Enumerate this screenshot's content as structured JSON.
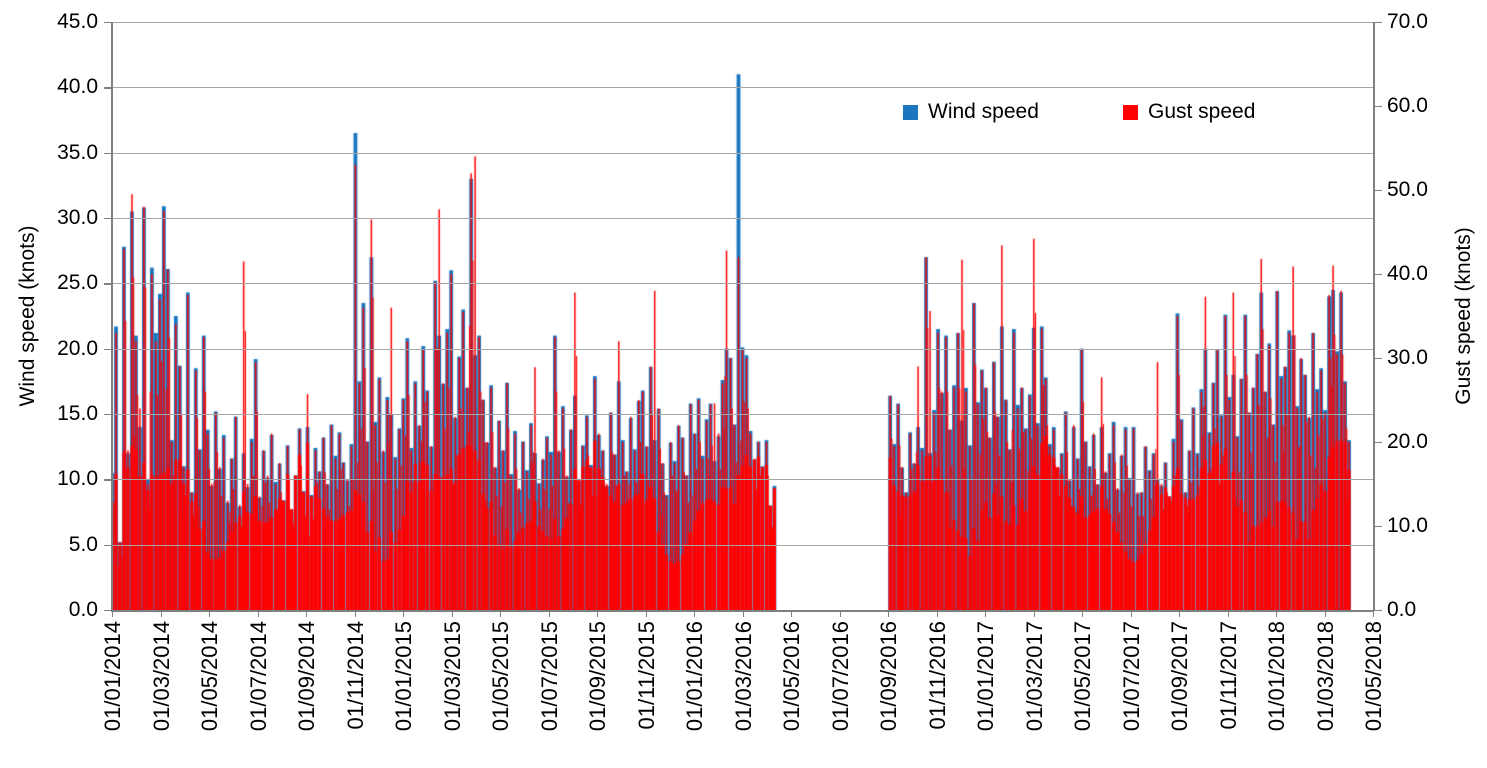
{
  "chart_data": {
    "type": "bar",
    "title": "",
    "legend_position": "inside-top-right",
    "grid": "horizontal",
    "colors": {
      "wind": "#1976BF",
      "gust": "#FF0000",
      "gridline": "#A6A6A6",
      "axis_line": "#808080",
      "text": "#000000",
      "background": "#FFFFFF"
    },
    "series": [
      {
        "name": "Wind speed",
        "axis": "left",
        "color": "#1976BF",
        "unit": "knots"
      },
      {
        "name": "Gust speed",
        "axis": "right",
        "color": "#FF0000",
        "unit": "knots"
      }
    ],
    "left_axis": {
      "label": "Wind speed (knots)",
      "min": 0,
      "max": 45,
      "step": 5,
      "tick_labels": [
        "45.0",
        "40.0",
        "35.0",
        "30.0",
        "25.0",
        "20.0",
        "15.0",
        "10.0",
        "5.0",
        "0.0"
      ]
    },
    "right_axis": {
      "label": "Gust speed (knots)",
      "min": 0,
      "max": 70,
      "step": 10,
      "tick_labels": [
        "70.0",
        "60.0",
        "50.0",
        "40.0",
        "30.0",
        "20.0",
        "10.0",
        "0.0"
      ]
    },
    "x_axis": {
      "tick_labels": [
        "01/01/2014",
        "01/03/2014",
        "01/05/2014",
        "01/07/2014",
        "01/09/2014",
        "01/11/2014",
        "01/01/2015",
        "01/03/2015",
        "01/05/2015",
        "01/07/2015",
        "01/09/2015",
        "01/11/2015",
        "01/01/2016",
        "01/03/2016",
        "01/05/2016",
        "01/07/2016",
        "01/09/2016",
        "01/11/2016",
        "01/01/2017",
        "01/03/2017",
        "01/05/2017",
        "01/07/2017",
        "01/09/2017",
        "01/11/2017",
        "01/01/2018",
        "01/03/2018",
        "01/05/2018"
      ]
    },
    "sample_interval_days": 5,
    "samples_start": "01/01/2014",
    "data_gap": {
      "approx_start": "04/2016",
      "approx_end": "09/2016"
    },
    "annotations": {
      "max_wind_knots": 41.0,
      "max_wind_at": "01/03/2016",
      "secondary_wind_peak_knots": 36.5,
      "secondary_wind_peak_at": "11/2014",
      "max_gust_knots": 54.0,
      "max_gust_at": "03/2015"
    },
    "samples_wind_gust_knots": [
      [
        10.5,
        16
      ],
      [
        21.7,
        33
      ],
      [
        5.2,
        8
      ],
      [
        27.8,
        43
      ],
      [
        12,
        19
      ],
      [
        30.5,
        49.5
      ],
      [
        21,
        32
      ],
      [
        14,
        24
      ],
      [
        30.8,
        48
      ],
      [
        10,
        15
      ],
      [
        26.2,
        40
      ],
      [
        21.2,
        32
      ],
      [
        24.2,
        37
      ],
      [
        30.9,
        47.5
      ],
      [
        26.1,
        40.5
      ],
      [
        13,
        20
      ],
      [
        22.5,
        34
      ],
      [
        18.7,
        29
      ],
      [
        11,
        17
      ],
      [
        24.3,
        37.5
      ],
      [
        9,
        14
      ],
      [
        18.5,
        28.5
      ],
      [
        12.3,
        19
      ],
      [
        21,
        32.5
      ],
      [
        13.8,
        21
      ],
      [
        9.5,
        15
      ],
      [
        15.2,
        23.5
      ],
      [
        10.8,
        17
      ],
      [
        13.4,
        20.5
      ],
      [
        8.2,
        13
      ],
      [
        11.6,
        18
      ],
      [
        14.8,
        23
      ],
      [
        7.9,
        12.5
      ],
      [
        12,
        41.5
      ],
      [
        9.4,
        15
      ],
      [
        13.1,
        20
      ],
      [
        19.2,
        29.5
      ],
      [
        8.6,
        13.5
      ],
      [
        12.2,
        19
      ],
      [
        10.1,
        16
      ],
      [
        13.4,
        21
      ],
      [
        9.8,
        15
      ],
      [
        11.2,
        17.5
      ],
      [
        8.4,
        13
      ],
      [
        12.6,
        19.5
      ],
      [
        7.6,
        12
      ],
      [
        10.3,
        16
      ],
      [
        13.9,
        21.5
      ],
      [
        9.1,
        14
      ],
      [
        14,
        25.7
      ],
      [
        8.8,
        13.5
      ],
      [
        12.4,
        19
      ],
      [
        10.6,
        16.5
      ],
      [
        13.2,
        20.5
      ],
      [
        9.6,
        15
      ],
      [
        14.2,
        22
      ],
      [
        11.8,
        18
      ],
      [
        13.6,
        21
      ],
      [
        11.3,
        17.5
      ],
      [
        9.9,
        15.5
      ],
      [
        12.7,
        19.5
      ],
      [
        36.5,
        53
      ],
      [
        17.5,
        27
      ],
      [
        23.5,
        36
      ],
      [
        12.9,
        20
      ],
      [
        27,
        46.5
      ],
      [
        14.4,
        22
      ],
      [
        17.8,
        27.5
      ],
      [
        12.1,
        19
      ],
      [
        16.3,
        25
      ],
      [
        15,
        36
      ],
      [
        11.7,
        18
      ],
      [
        13.9,
        21.5
      ],
      [
        16.2,
        25
      ],
      [
        20.8,
        32
      ],
      [
        12.4,
        19
      ],
      [
        17.5,
        27
      ],
      [
        14.1,
        22
      ],
      [
        20.2,
        31
      ],
      [
        16.8,
        26
      ],
      [
        12.5,
        19.5
      ],
      [
        25.2,
        39
      ],
      [
        21,
        47.7
      ],
      [
        17.3,
        27
      ],
      [
        21.5,
        33
      ],
      [
        26,
        40
      ],
      [
        14.7,
        23
      ],
      [
        19.4,
        30
      ],
      [
        23,
        35.5
      ],
      [
        17,
        26.5
      ],
      [
        33,
        52
      ],
      [
        19.5,
        54
      ],
      [
        21,
        32.5
      ],
      [
        16.1,
        25
      ],
      [
        12.8,
        20
      ],
      [
        17.2,
        26.5
      ],
      [
        10.9,
        17
      ],
      [
        14.5,
        22.5
      ],
      [
        12.2,
        19
      ],
      [
        17.4,
        27
      ],
      [
        10.4,
        16
      ],
      [
        13.7,
        21
      ],
      [
        9.2,
        14.5
      ],
      [
        12.9,
        20
      ],
      [
        10.7,
        16.5
      ],
      [
        14.3,
        22
      ],
      [
        12,
        28.9
      ],
      [
        9.7,
        15
      ],
      [
        11.5,
        18
      ],
      [
        13.3,
        20.5
      ],
      [
        12.1,
        18.5
      ],
      [
        21,
        32.5
      ],
      [
        12.1,
        19
      ],
      [
        15.6,
        24
      ],
      [
        10.2,
        16
      ],
      [
        13.8,
        21.5
      ],
      [
        16.4,
        37.8
      ],
      [
        9.9,
        15.5
      ],
      [
        12.6,
        19.5
      ],
      [
        14.9,
        23
      ],
      [
        11.1,
        17
      ],
      [
        17.9,
        27.5
      ],
      [
        13.4,
        21
      ],
      [
        12.2,
        19
      ],
      [
        9.5,
        15
      ],
      [
        15.1,
        23.5
      ],
      [
        11.9,
        18.5
      ],
      [
        17.5,
        32
      ],
      [
        13,
        20
      ],
      [
        10.6,
        16.5
      ],
      [
        14.7,
        23
      ],
      [
        12.3,
        19
      ],
      [
        16,
        25
      ],
      [
        16.8,
        26
      ],
      [
        12.5,
        19.5
      ],
      [
        18.6,
        29
      ],
      [
        13,
        38
      ],
      [
        15.4,
        24
      ],
      [
        11.2,
        17.5
      ],
      [
        8.8,
        13.5
      ],
      [
        12.8,
        20
      ],
      [
        11.4,
        17.5
      ],
      [
        14.1,
        22
      ],
      [
        13.2,
        20.5
      ],
      [
        10.3,
        16
      ],
      [
        15.8,
        24.5
      ],
      [
        13.5,
        21
      ],
      [
        16.2,
        25
      ],
      [
        11.8,
        18
      ],
      [
        14.6,
        22.5
      ],
      [
        15.8,
        24.5
      ],
      [
        11.4,
        24.6
      ],
      [
        13.3,
        21
      ],
      [
        17.6,
        27
      ],
      [
        20,
        42.8
      ],
      [
        19.3,
        30
      ],
      [
        14.2,
        22
      ],
      [
        41,
        42
      ],
      [
        20.1,
        31
      ],
      [
        19.5,
        30
      ],
      [
        13.7,
        21
      ],
      [
        11.5,
        18
      ],
      [
        12.9,
        20
      ],
      [
        11,
        17
      ],
      [
        13,
        20
      ],
      [
        8,
        12.4
      ],
      [
        9.5,
        14.5
      ],
      null,
      null,
      null,
      null,
      null,
      null,
      null,
      null,
      null,
      null,
      null,
      null,
      null,
      null,
      null,
      null,
      null,
      null,
      null,
      null,
      null,
      null,
      null,
      null,
      null,
      null,
      null,
      null,
      [
        16.4,
        25.5
      ],
      [
        12.7,
        19.5
      ],
      [
        15.8,
        24.5
      ],
      [
        10.9,
        17
      ],
      [
        9,
        14
      ],
      [
        13.6,
        21
      ],
      [
        11.2,
        17.5
      ],
      [
        14,
        29
      ],
      [
        12.4,
        19
      ],
      [
        27,
        42
      ],
      [
        12,
        35.6
      ],
      [
        15.3,
        23.5
      ],
      [
        21.5,
        33
      ],
      [
        16.6,
        26
      ],
      [
        21,
        32.5
      ],
      [
        13.8,
        21.5
      ],
      [
        17.2,
        26.5
      ],
      [
        21.2,
        33
      ],
      [
        14.5,
        41.7
      ],
      [
        17,
        26
      ],
      [
        12.6,
        19.5
      ],
      [
        23.5,
        36.5
      ],
      [
        15.9,
        24.5
      ],
      [
        18.4,
        28.5
      ],
      [
        17,
        26.5
      ],
      [
        13.2,
        20.5
      ],
      [
        19,
        29.5
      ],
      [
        14.8,
        23
      ],
      [
        21.7,
        43.4
      ],
      [
        16.1,
        25
      ],
      [
        12.3,
        19
      ],
      [
        21.5,
        33
      ],
      [
        15.7,
        24
      ],
      [
        17,
        26.5
      ],
      [
        13.9,
        21.5
      ],
      [
        16.5,
        25.5
      ],
      [
        21.6,
        44.2
      ],
      [
        14.3,
        22
      ],
      [
        21.7,
        33.5
      ],
      [
        17.8,
        27.5
      ],
      [
        12.7,
        19.5
      ],
      [
        14,
        21.5
      ],
      [
        10.8,
        17
      ],
      [
        12,
        18.5
      ],
      [
        15.2,
        23.5
      ],
      [
        9.9,
        15.5
      ],
      [
        14,
        22
      ],
      [
        11.6,
        18
      ],
      [
        20,
        31
      ],
      [
        12.9,
        20
      ],
      [
        11,
        17
      ],
      [
        13.4,
        21
      ],
      [
        9.6,
        15
      ],
      [
        14,
        27.7
      ],
      [
        10.5,
        16.5
      ],
      [
        12,
        18.5
      ],
      [
        14.4,
        22
      ],
      [
        9.2,
        14.5
      ],
      [
        11.8,
        18.5
      ],
      [
        14,
        21.5
      ],
      [
        10.1,
        15.5
      ],
      [
        14,
        21.6
      ],
      [
        8.9,
        14
      ],
      [
        9,
        14
      ],
      [
        12.5,
        19.5
      ],
      [
        10.7,
        16.5
      ],
      [
        12,
        18.5
      ],
      [
        10,
        29.5
      ],
      [
        9.5,
        15
      ],
      [
        11.3,
        17.5
      ],
      [
        8.7,
        13.5
      ],
      [
        13.1,
        20
      ],
      [
        22.7,
        35
      ],
      [
        14.6,
        22.5
      ],
      [
        9,
        14
      ],
      [
        12.2,
        19
      ],
      [
        15.5,
        24
      ],
      [
        12,
        18.5
      ],
      [
        16.9,
        26
      ],
      [
        20,
        37.3
      ],
      [
        13.6,
        21
      ],
      [
        17.4,
        27
      ],
      [
        19.9,
        31
      ],
      [
        14.9,
        23
      ],
      [
        22.6,
        35
      ],
      [
        16.3,
        25
      ],
      [
        18,
        37.8
      ],
      [
        13.3,
        20.5
      ],
      [
        17.7,
        27.5
      ],
      [
        22.6,
        35
      ],
      [
        15.1,
        23.5
      ],
      [
        17,
        26.5
      ],
      [
        19.6,
        30.5
      ],
      [
        24.3,
        41.8
      ],
      [
        16.7,
        26
      ],
      [
        20.4,
        31.5
      ],
      [
        14.2,
        22
      ],
      [
        24.4,
        38
      ],
      [
        17.9,
        27.5
      ],
      [
        18.6,
        29
      ],
      [
        21.4,
        33
      ],
      [
        21,
        40.9
      ],
      [
        15.6,
        24
      ],
      [
        19.2,
        30
      ],
      [
        18,
        28
      ],
      [
        14.7,
        23
      ],
      [
        21.2,
        33
      ],
      [
        16.9,
        26
      ],
      [
        18.5,
        28.5
      ],
      [
        15.3,
        23.5
      ],
      [
        24,
        37.5
      ],
      [
        24.5,
        41
      ],
      [
        19.8,
        30.5
      ],
      [
        24.3,
        38
      ],
      [
        17.5,
        27
      ],
      [
        13,
        20
      ],
      null,
      null,
      null,
      null,
      null,
      null
    ]
  },
  "legend": {
    "wind_label": "Wind speed",
    "gust_label": "Gust speed"
  }
}
